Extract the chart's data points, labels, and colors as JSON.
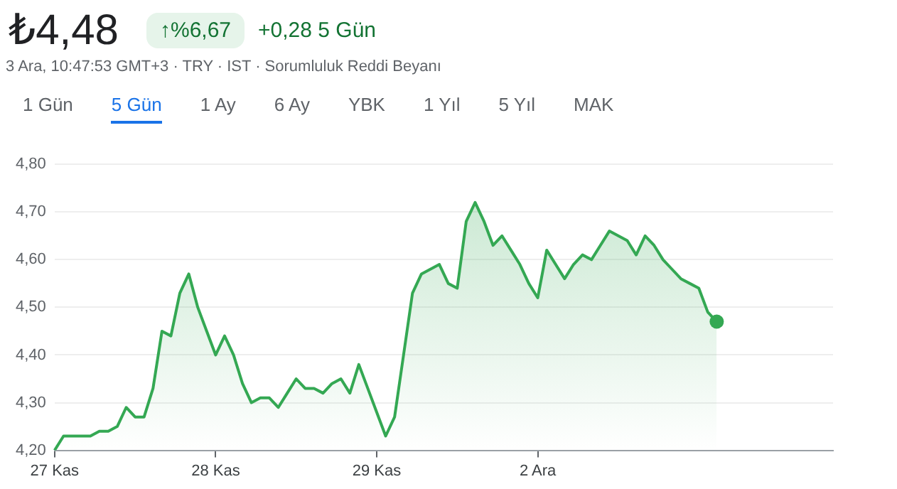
{
  "chart_data": {
    "type": "area",
    "title": "₺4,48",
    "subtitle": "3 Ara, 10:47:53 GMT+3 · TRY · IST · Sorumluluk Reddi Beyanı",
    "annotations": [
      "↑%6,67",
      "+0,28 5 Gün",
      "1 Gün",
      "5 Gün",
      "1 Ay",
      "6 Ay",
      "YBK",
      "1 Yıl",
      "5 Yıl",
      "MAK"
    ],
    "categories": [
      "27 Kas",
      null,
      null,
      null,
      null,
      null,
      null,
      null,
      null,
      null,
      null,
      null,
      null,
      null,
      null,
      null,
      null,
      null,
      "28 Kas",
      null,
      null,
      null,
      null,
      null,
      null,
      null,
      null,
      null,
      null,
      null,
      null,
      null,
      null,
      null,
      null,
      null,
      "29 Kas",
      null,
      null,
      null,
      null,
      null,
      null,
      null,
      null,
      null,
      null,
      null,
      null,
      null,
      null,
      null,
      null,
      null,
      "2 Ara",
      null,
      null,
      null,
      null,
      null,
      null,
      null,
      null,
      null,
      null,
      null,
      null,
      null,
      null,
      null,
      null,
      null,
      null,
      null,
      null,
      null,
      null,
      null,
      null,
      null,
      null,
      null,
      null,
      null,
      null,
      null,
      null,
      null
    ],
    "series": [
      {
        "color": "#34a853",
        "values": [
          4.2,
          4.23,
          4.23,
          4.23,
          4.23,
          4.24,
          4.24,
          4.25,
          4.29,
          4.27,
          4.27,
          4.33,
          4.45,
          4.44,
          4.53,
          4.57,
          4.5,
          4.45,
          4.4,
          4.44,
          4.4,
          4.34,
          4.3,
          4.31,
          4.31,
          4.29,
          4.32,
          4.35,
          4.33,
          4.33,
          4.32,
          4.34,
          4.35,
          4.32,
          4.38,
          4.33,
          4.28,
          4.23,
          4.27,
          4.4,
          4.53,
          4.57,
          4.58,
          4.59,
          4.55,
          4.54,
          4.68,
          4.72,
          4.68,
          4.63,
          4.65,
          4.62,
          4.59,
          4.55,
          4.52,
          4.62,
          4.59,
          4.56,
          4.59,
          4.61,
          4.6,
          4.63,
          4.66,
          4.65,
          4.64,
          4.61,
          4.65,
          4.63,
          4.6,
          4.58,
          4.56,
          4.55,
          4.54,
          4.49,
          4.47,
          null,
          null,
          null,
          null,
          null,
          null,
          null,
          null,
          null,
          null,
          null,
          null,
          null
        ]
      }
    ],
    "ylim": [
      4.2,
      4.8
    ],
    "yticks": [
      {
        "value": 4.2,
        "label": "4,20"
      },
      {
        "value": 4.3,
        "label": "4,30"
      },
      {
        "value": 4.4,
        "label": "4,40"
      },
      {
        "value": 4.5,
        "label": "4,50"
      },
      {
        "value": 4.6,
        "label": "4,60"
      },
      {
        "value": 4.7,
        "label": "4,70"
      },
      {
        "value": 4.8,
        "label": "4,80"
      }
    ],
    "grid": "y"
  }
}
